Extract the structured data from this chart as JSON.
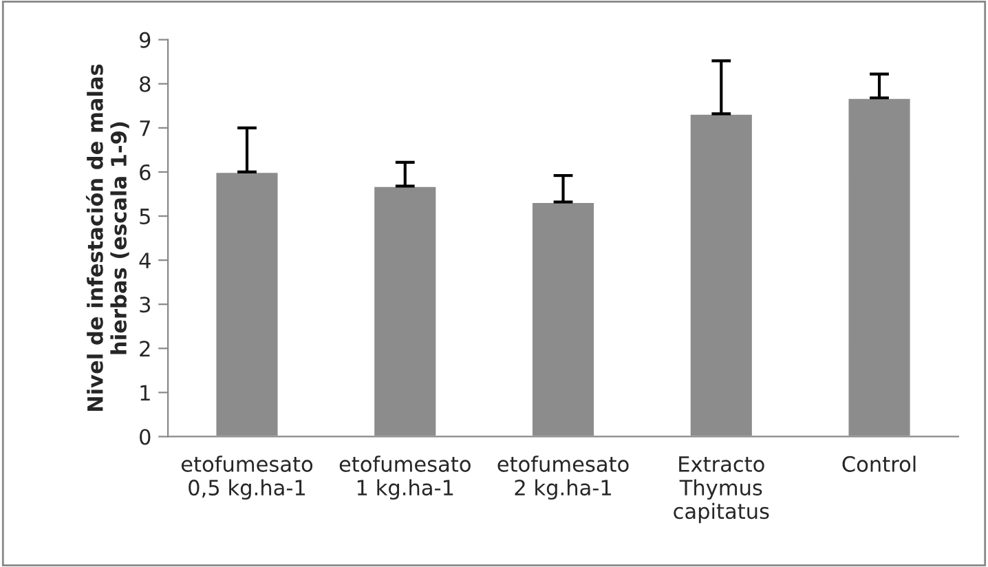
{
  "chart_data": {
    "type": "bar",
    "ylabel": "Nivel de infestación de malas\nhierbas (escala 1-9)",
    "categories": [
      "etofumesato\n0,5 kg.ha-1",
      "etofumesato\n1 kg.ha-1",
      "etofumesato\n2 kg.ha-1",
      "Extracto\nThymus\ncapitatus",
      "Control"
    ],
    "values": [
      6.0,
      5.68,
      5.32,
      7.32,
      7.68
    ],
    "errors": [
      [
        6.0,
        7.0
      ],
      [
        5.68,
        6.22
      ],
      [
        5.32,
        5.92
      ],
      [
        7.32,
        8.52
      ],
      [
        7.68,
        8.22
      ]
    ],
    "color": "#8c8c8c",
    "ylim": [
      0,
      9
    ],
    "yticks": [
      0,
      1,
      2,
      3,
      4,
      5,
      6,
      7,
      8,
      9
    ],
    "grid": false,
    "legend": false
  }
}
